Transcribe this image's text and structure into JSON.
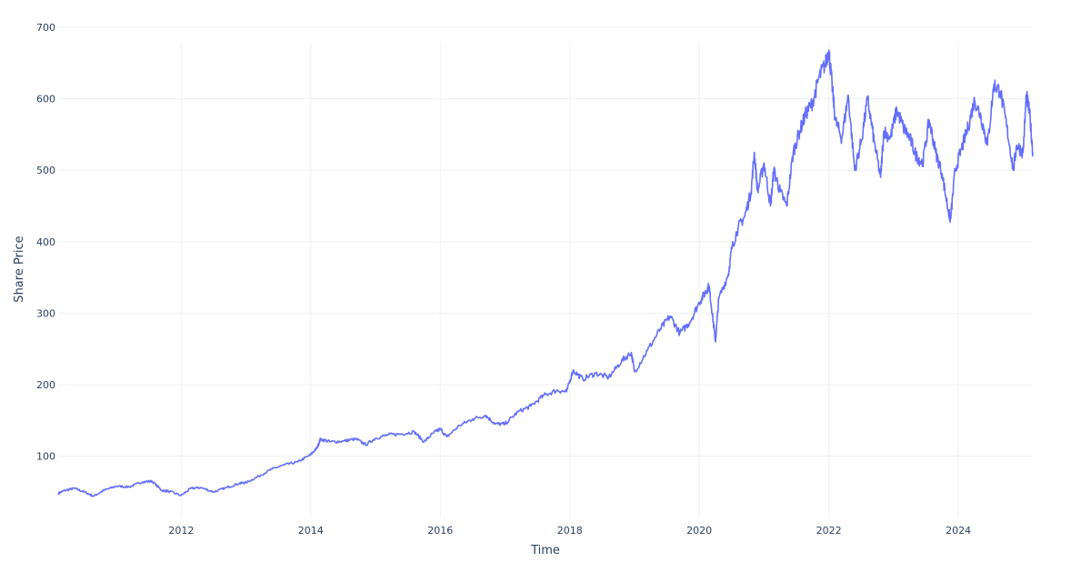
{
  "chart_data": {
    "type": "line",
    "title": "",
    "xlabel": "Time",
    "ylabel": "Share Price",
    "grid": true,
    "legend": "none",
    "x_ticks": [
      "2012",
      "2014",
      "2016",
      "2018",
      "2020",
      "2022",
      "2024"
    ],
    "y_ticks": [
      100,
      200,
      300,
      400,
      500,
      600,
      700
    ],
    "xlim": [
      2010.1,
      2025.15
    ],
    "ylim": [
      13,
      700
    ],
    "series": [
      {
        "color": "#636efa",
        "x": [
          2010.1,
          2010.2,
          2010.35,
          2010.5,
          2010.65,
          2010.8,
          2011.0,
          2011.2,
          2011.4,
          2011.55,
          2011.7,
          2011.8,
          2012.0,
          2012.15,
          2012.3,
          2012.5,
          2012.7,
          2012.9,
          2013.0,
          2013.2,
          2013.4,
          2013.6,
          2013.8,
          2014.0,
          2014.1,
          2014.15,
          2014.3,
          2014.5,
          2014.7,
          2014.85,
          2015.0,
          2015.2,
          2015.4,
          2015.6,
          2015.75,
          2015.9,
          2016.0,
          2016.1,
          2016.3,
          2016.5,
          2016.7,
          2016.85,
          2017.0,
          2017.2,
          2017.4,
          2017.6,
          2017.8,
          2017.95,
          2018.05,
          2018.2,
          2018.4,
          2018.6,
          2018.8,
          2018.95,
          2019.0,
          2019.2,
          2019.4,
          2019.55,
          2019.7,
          2019.85,
          2020.0,
          2020.1,
          2020.15,
          2020.2,
          2020.25,
          2020.3,
          2020.45,
          2020.5,
          2020.6,
          2020.7,
          2020.8,
          2020.85,
          2020.9,
          2021.0,
          2021.1,
          2021.15,
          2021.25,
          2021.35,
          2021.45,
          2021.55,
          2021.65,
          2021.75,
          2021.85,
          2021.95,
          2022.0,
          2022.05,
          2022.1,
          2022.2,
          2022.3,
          2022.4,
          2022.5,
          2022.6,
          2022.7,
          2022.8,
          2022.85,
          2022.95,
          2023.05,
          2023.15,
          2023.25,
          2023.35,
          2023.45,
          2023.55,
          2023.65,
          2023.75,
          2023.85,
          2023.88,
          2023.95,
          2024.05,
          2024.15,
          2024.25,
          2024.35,
          2024.45,
          2024.55,
          2024.65,
          2024.75,
          2024.85,
          2024.9,
          2025.0,
          2025.05,
          2025.1,
          2025.15
        ],
        "y": [
          48,
          52,
          55,
          50,
          44,
          52,
          58,
          57,
          64,
          65,
          52,
          51,
          45,
          55,
          56,
          50,
          56,
          62,
          63,
          72,
          82,
          88,
          92,
          102,
          112,
          124,
          120,
          121,
          124,
          116,
          125,
          130,
          131,
          134,
          120,
          133,
          138,
          127,
          143,
          152,
          157,
          145,
          145,
          162,
          170,
          185,
          192,
          190,
          220,
          208,
          216,
          210,
          233,
          245,
          218,
          248,
          278,
          296,
          272,
          287,
          315,
          330,
          338,
          300,
          260,
          320,
          355,
          390,
          420,
          435,
          470,
          525,
          470,
          510,
          450,
          500,
          470,
          450,
          525,
          555,
          580,
          595,
          630,
          650,
          668,
          620,
          570,
          545,
          605,
          500,
          540,
          600,
          540,
          490,
          555,
          545,
          585,
          560,
          545,
          520,
          510,
          570,
          525,
          495,
          440,
          432,
          500,
          530,
          560,
          598,
          575,
          535,
          620,
          610,
          560,
          500,
          535,
          525,
          605,
          580,
          525
        ]
      }
    ]
  }
}
